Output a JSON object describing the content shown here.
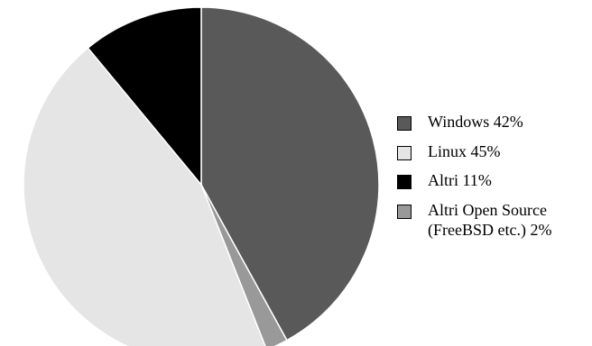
{
  "chart_data": {
    "type": "pie",
    "title": "",
    "start_angle_deg": 0,
    "direction": "clockwise",
    "slices": [
      {
        "label": "Windows 42%",
        "value": 42,
        "color": "#595959"
      },
      {
        "label": "Altri Open Source\n(FreeBSD etc.) 2%",
        "value": 2,
        "color": "#999999"
      },
      {
        "label": "Linux 45%",
        "value": 45,
        "color": "#e5e5e5"
      },
      {
        "label": "Altri 11%",
        "value": 11,
        "color": "#000000"
      }
    ],
    "legend": {
      "placement": "right",
      "items": [
        {
          "label": "Windows 42%",
          "color": "#595959"
        },
        {
          "label": "Linux 45%",
          "color": "#e5e5e5"
        },
        {
          "label": "Altri 11%",
          "color": "#000000"
        },
        {
          "label": "Altri Open Source\n(FreeBSD etc.) 2%",
          "color": "#999999"
        }
      ]
    }
  }
}
